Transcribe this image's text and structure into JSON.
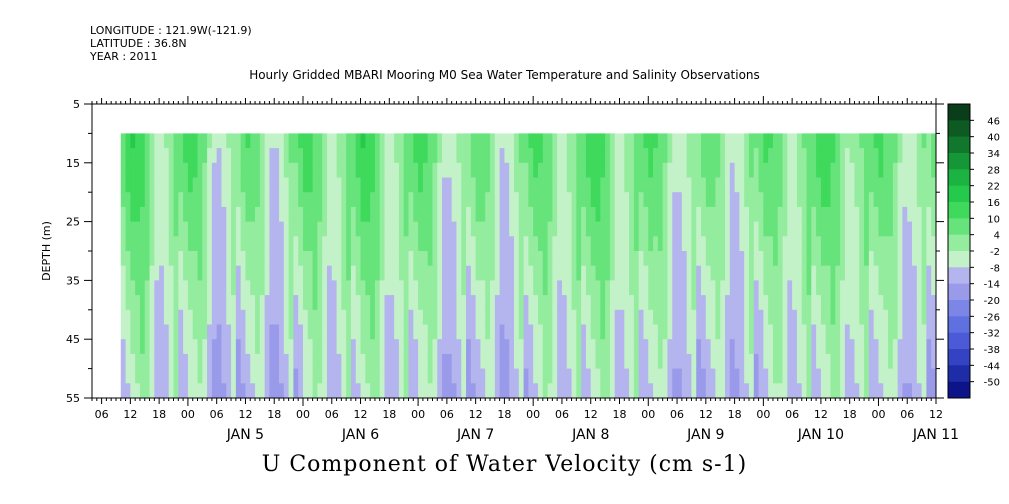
{
  "header": {
    "longitude": "LONGITUDE : 121.9W(-121.9)",
    "latitude": "LATITUDE : 36.8N",
    "year": "YEAR : 2011"
  },
  "chart_data": {
    "type": "heatmap",
    "title": "Hourly Gridded MBARI Mooring M0 Sea Water Temperature and Salinity Observations",
    "subtitle": "U Component of Water Velocity (cm s-1)",
    "ylabel": "DEPTH (m)",
    "xlabel": "",
    "x_range_hours_from_jan4_00": [
      4,
      180
    ],
    "data_start_hour": 10,
    "y_range_m": [
      5,
      55
    ],
    "y_inverted": true,
    "data_depth_range_m": [
      10,
      55
    ],
    "y_ticks": [
      "5",
      "15",
      "25",
      "35",
      "45",
      "55"
    ],
    "x_hour_ticks": [
      "06",
      "12",
      "18",
      "00",
      "06",
      "12",
      "18",
      "00",
      "06",
      "12",
      "18",
      "00",
      "06",
      "12",
      "18",
      "00",
      "06",
      "12",
      "18",
      "00",
      "06",
      "12",
      "18",
      "00",
      "06",
      "12",
      "18",
      "00",
      "06",
      "12",
      "18",
      "00"
    ],
    "x_hour_tick_positions_h": [
      6,
      12,
      18,
      24,
      30,
      36,
      42,
      48,
      54,
      60,
      66,
      72,
      78,
      84,
      90,
      96,
      102,
      108,
      114,
      120,
      126,
      132,
      138,
      144,
      150,
      156,
      162,
      168,
      174,
      180
    ],
    "day_labels": [
      "JAN  5",
      "JAN  6",
      "JAN  7",
      "JAN  8",
      "JAN  9",
      "JAN 10",
      "JAN 11"
    ],
    "colorbar": {
      "levels": [
        "46",
        "40",
        "34",
        "28",
        "22",
        "16",
        "10",
        "4",
        "-2",
        "-8",
        "-14",
        "-20",
        "-26",
        "-32",
        "-38",
        "-44",
        "-50"
      ],
      "colors": [
        "#0a3d1a",
        "#0d5a22",
        "#11772c",
        "#159637",
        "#1bb341",
        "#25c94c",
        "#3fd95c",
        "#66e37b",
        "#94ec9f",
        "#c3f2c8",
        "#b4b4ee",
        "#9a9aea",
        "#7c86e6",
        "#5f70e0",
        "#4d5ad8",
        "#3443c4",
        "#1f2ca8",
        "#0d148a"
      ]
    },
    "columns_u_cm_s": {
      "hours_step": 1,
      "profile_depths_m": [
        10,
        20,
        30,
        40,
        50,
        55
      ],
      "profiles": [
        [
          10,
          6,
          0,
          -6,
          -10,
          -10
        ],
        [
          14,
          8,
          2,
          -4,
          -8,
          -10
        ],
        [
          14,
          10,
          4,
          -2,
          -6,
          -8
        ],
        [
          10,
          8,
          2,
          -2,
          -6,
          -8
        ],
        [
          6,
          4,
          2,
          0,
          -4,
          -6
        ],
        [
          2,
          0,
          -2,
          -4,
          -6,
          -8
        ],
        [
          -4,
          -6,
          -8,
          -10,
          -12,
          -14
        ],
        [
          -8,
          -10,
          -12,
          -14,
          -16,
          -18
        ],
        [
          -6,
          -8,
          -10,
          -12,
          -14,
          -16
        ],
        [
          -2,
          -4,
          -6,
          -8,
          -10,
          -12
        ],
        [
          4,
          2,
          0,
          -2,
          -4,
          -6
        ],
        [
          10,
          8,
          6,
          4,
          2,
          0
        ]
      ]
    }
  }
}
